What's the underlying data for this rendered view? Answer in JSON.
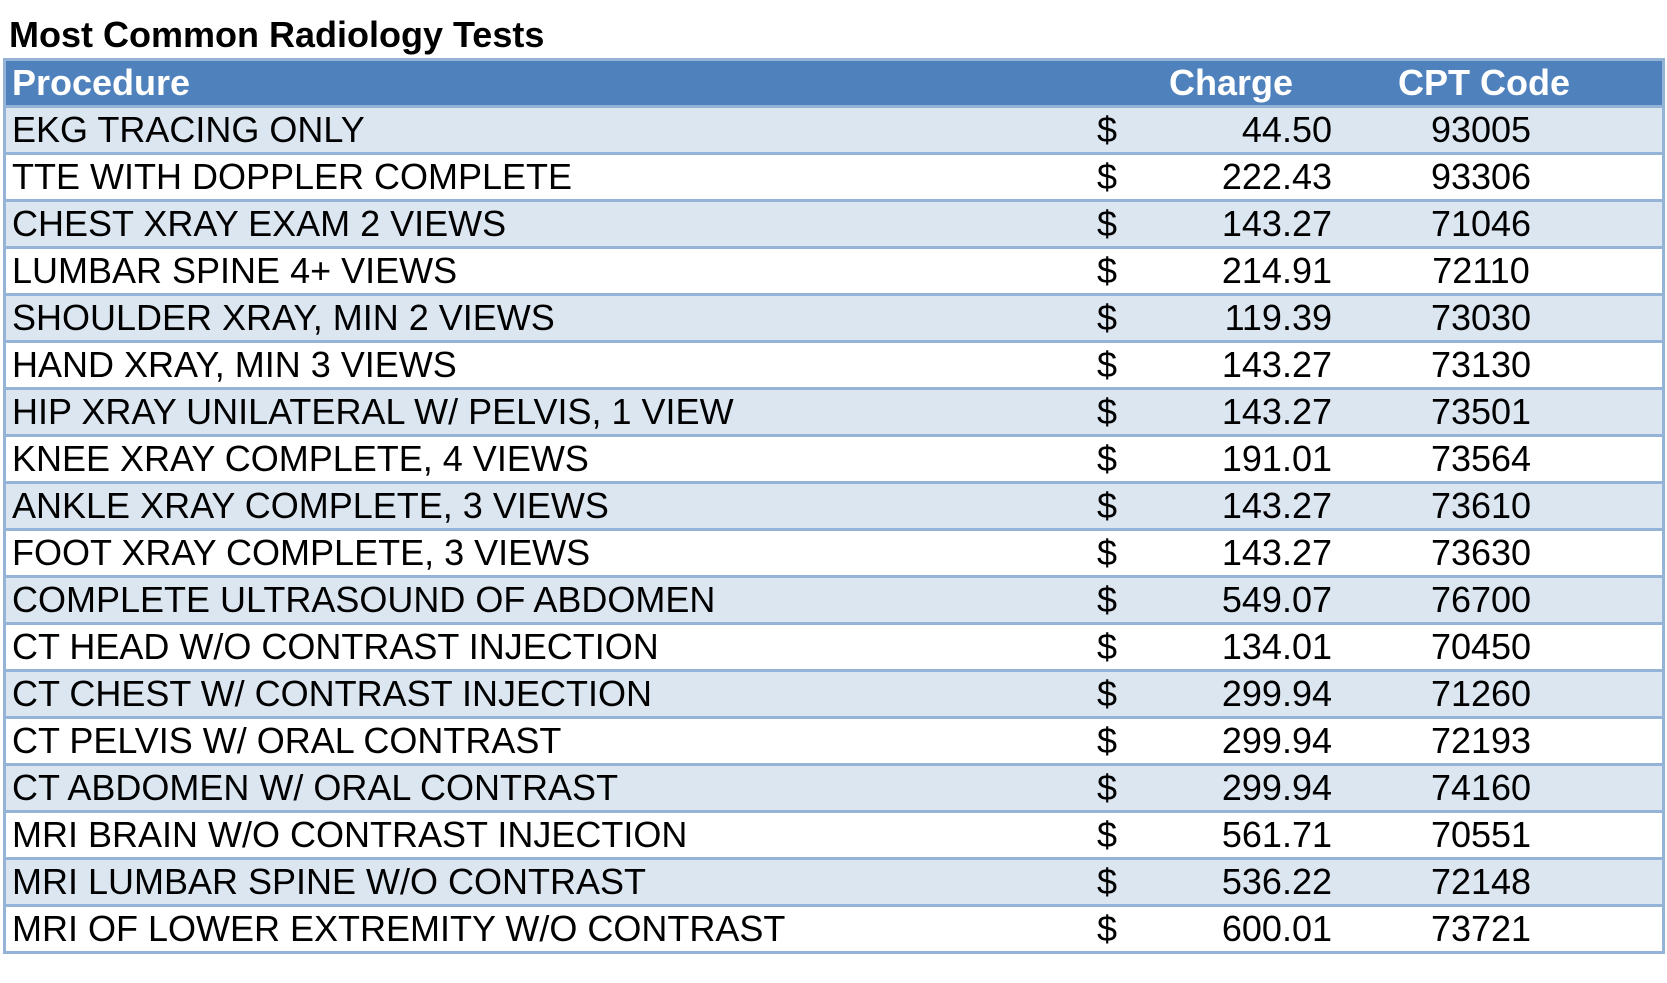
{
  "title": "Most Common Radiology Tests",
  "colors": {
    "header_bg": "#4f81bd",
    "band_bg": "#dce6f1",
    "border": "#95b3d7",
    "header_text": "#ffffff"
  },
  "columns": {
    "procedure": "Procedure",
    "charge": "Charge",
    "cpt": "CPT Code"
  },
  "currency_symbol": "$",
  "rows": [
    {
      "procedure": "EKG TRACING ONLY",
      "charge": "44.50",
      "cpt": "93005"
    },
    {
      "procedure": "TTE WITH DOPPLER COMPLETE",
      "charge": "222.43",
      "cpt": "93306"
    },
    {
      "procedure": "CHEST XRAY EXAM 2 VIEWS",
      "charge": "143.27",
      "cpt": "71046"
    },
    {
      "procedure": "LUMBAR SPINE 4+ VIEWS",
      "charge": "214.91",
      "cpt": "72110"
    },
    {
      "procedure": "SHOULDER XRAY, MIN 2 VIEWS",
      "charge": "119.39",
      "cpt": "73030"
    },
    {
      "procedure": "HAND XRAY, MIN 3 VIEWS",
      "charge": "143.27",
      "cpt": "73130"
    },
    {
      "procedure": "HIP XRAY UNILATERAL W/ PELVIS, 1 VIEW",
      "charge": "143.27",
      "cpt": "73501"
    },
    {
      "procedure": "KNEE XRAY COMPLETE, 4 VIEWS",
      "charge": "191.01",
      "cpt": "73564"
    },
    {
      "procedure": "ANKLE XRAY COMPLETE, 3 VIEWS",
      "charge": "143.27",
      "cpt": "73610"
    },
    {
      "procedure": "FOOT XRAY COMPLETE, 3 VIEWS",
      "charge": "143.27",
      "cpt": "73630"
    },
    {
      "procedure": "COMPLETE ULTRASOUND OF ABDOMEN",
      "charge": "549.07",
      "cpt": "76700"
    },
    {
      "procedure": "CT HEAD W/O CONTRAST INJECTION",
      "charge": "134.01",
      "cpt": "70450"
    },
    {
      "procedure": "CT CHEST W/ CONTRAST INJECTION",
      "charge": "299.94",
      "cpt": "71260"
    },
    {
      "procedure": "CT PELVIS W/ ORAL CONTRAST",
      "charge": "299.94",
      "cpt": "72193"
    },
    {
      "procedure": "CT ABDOMEN W/ ORAL CONTRAST",
      "charge": "299.94",
      "cpt": "74160"
    },
    {
      "procedure": "MRI BRAIN W/O CONTRAST INJECTION",
      "charge": "561.71",
      "cpt": "70551"
    },
    {
      "procedure": "MRI LUMBAR SPINE W/O CONTRAST",
      "charge": "536.22",
      "cpt": "72148"
    },
    {
      "procedure": "MRI OF LOWER EXTREMITY W/O CONTRAST",
      "charge": "600.01",
      "cpt": "73721"
    }
  ]
}
